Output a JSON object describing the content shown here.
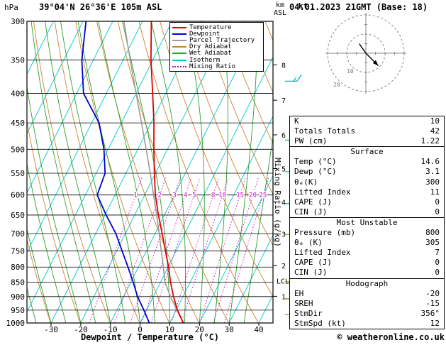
{
  "header": {
    "pressure_unit": "hPa",
    "station": "39°04'N 26°36'E 105m ASL",
    "datetime": "04.01.2023 21GMT (Base: 18)",
    "altitude_unit_top": "km",
    "altitude_unit_bottom": "ASL"
  },
  "axes": {
    "x_title": "Dewpoint / Temperature (°C)",
    "x_ticks": [
      -30,
      -20,
      -10,
      0,
      10,
      20,
      30,
      40
    ],
    "pressure_ticks": [
      300,
      350,
      400,
      450,
      500,
      550,
      600,
      650,
      700,
      750,
      800,
      850,
      900,
      950,
      1000
    ],
    "km_ticks": [
      1,
      2,
      3,
      4,
      5,
      6,
      7,
      8
    ],
    "mixing_ratio_axis_label": "Mixing Ratio (g/kg)",
    "lcl_label": "LCL"
  },
  "colors": {
    "temperature": "#e00000",
    "dewpoint": "#0000d0",
    "parcel": "#9a9a9a",
    "dry_adiabat": "#cc8433",
    "wet_adiabat": "#2da02d",
    "isotherm": "#00c8c8",
    "mixing_ratio": "#c800c8",
    "barb_upper": "#00b4b4",
    "barb_lower": "#6aaa1e",
    "grid": "#000000"
  },
  "legend": {
    "items": [
      {
        "label": "Temperature",
        "color_key": "temperature",
        "style": "solid"
      },
      {
        "label": "Dewpoint",
        "color_key": "dewpoint",
        "style": "solid"
      },
      {
        "label": "Parcel Trajectory",
        "color_key": "parcel",
        "style": "solid"
      },
      {
        "label": "Dry Adiabat",
        "color_key": "dry_adiabat",
        "style": "solid"
      },
      {
        "label": "Wet Adiabat",
        "color_key": "wet_adiabat",
        "style": "solid"
      },
      {
        "label": "Isotherm",
        "color_key": "isotherm",
        "style": "solid"
      },
      {
        "label": "Mixing Ratio",
        "color_key": "mixing_ratio",
        "style": "dotted"
      }
    ]
  },
  "hodograph": {
    "unit_label": "kt",
    "ring_labels": [
      "10",
      "20"
    ]
  },
  "panel": {
    "sections": [
      {
        "header": "",
        "rows": [
          {
            "label": "K",
            "value": "10"
          },
          {
            "label": "Totals Totals",
            "value": "42"
          },
          {
            "label": "PW (cm)",
            "value": "1.22"
          }
        ]
      },
      {
        "header": "Surface",
        "rows": [
          {
            "label": "Temp (°C)",
            "value": "14.6"
          },
          {
            "label": "Dewp (°C)",
            "value": "3.1"
          },
          {
            "label": "θₑ(K)",
            "value": "300"
          },
          {
            "label": "Lifted Index",
            "value": "11"
          },
          {
            "label": "CAPE (J)",
            "value": "0"
          },
          {
            "label": "CIN (J)",
            "value": "0"
          }
        ]
      },
      {
        "header": "Most Unstable",
        "rows": [
          {
            "label": "Pressure (mb)",
            "value": "800"
          },
          {
            "label": "θₑ (K)",
            "value": "305"
          },
          {
            "label": "Lifted Index",
            "value": "7"
          },
          {
            "label": "CAPE (J)",
            "value": "0"
          },
          {
            "label": "CIN (J)",
            "value": "0"
          }
        ]
      },
      {
        "header": "Hodograph",
        "rows": [
          {
            "label": "EH",
            "value": "-20"
          },
          {
            "label": "SREH",
            "value": "-15"
          },
          {
            "label": "StmDir",
            "value": "356°"
          },
          {
            "label": "StmSpd (kt)",
            "value": "12"
          }
        ]
      }
    ]
  },
  "footer": {
    "copyright": "© weatheronline.co.uk"
  },
  "chart_data": {
    "type": "skew-t-log-p",
    "pressure_axis_range_hpa": [
      300,
      1000
    ],
    "temp_axis_range_c": [
      -30,
      40
    ],
    "isotherm_step_c": 10,
    "pressure_levels": [
      1000,
      950,
      900,
      850,
      800,
      750,
      700,
      650,
      600,
      550,
      500,
      450,
      400,
      350,
      300
    ],
    "temperature_c": [
      14.6,
      10.4,
      6.8,
      3.4,
      0.2,
      -3.6,
      -7.6,
      -12.0,
      -16.4,
      -20.4,
      -24.6,
      -29.0,
      -34.4,
      -40.6,
      -47.0
    ],
    "dewpoint_c": [
      3.1,
      -0.9,
      -5.3,
      -9.2,
      -13.5,
      -18.2,
      -23.2,
      -29.6,
      -36.0,
      -37.0,
      -41.4,
      -47.5,
      -57.7,
      -63.9,
      -69.0
    ],
    "parcel_c": [
      14.6,
      10.2,
      5.8,
      1.5,
      -1.6,
      -5.0,
      -8.6,
      -12.6,
      -17.0,
      -21.8,
      -27.2,
      -33.2,
      -40.0,
      -47.6,
      -56.2
    ],
    "lcl_pressure_hpa": 845,
    "mixing_ratio_g_kg": [
      1,
      2,
      3,
      4,
      5,
      8,
      10,
      15,
      20,
      25
    ],
    "km_asl_pressures": {
      "1": 899,
      "2": 795,
      "3": 701,
      "4": 617,
      "5": 540,
      "6": 472,
      "7": 411,
      "8": 357
    },
    "wind_barbs": [
      {
        "pressure": 381,
        "speed_kt": 15,
        "level": "upper"
      },
      {
        "pressure": 482,
        "speed_kt": 20,
        "level": "upper"
      },
      {
        "pressure": 547,
        "speed_kt": 15,
        "level": "upper"
      },
      {
        "pressure": 621,
        "speed_kt": 10,
        "level": "upper"
      },
      {
        "pressure": 702,
        "speed_kt": 15,
        "level": "lower"
      },
      {
        "pressure": 848,
        "speed_kt": 25,
        "level": "lower"
      },
      {
        "pressure": 908,
        "speed_kt": 10,
        "level": "lower"
      },
      {
        "pressure": 967,
        "speed_kt": 15,
        "level": "lower"
      }
    ],
    "hodograph_ring_speeds_kt": [
      10,
      20
    ],
    "hodograph_trace_kt": [
      [
        -3.5,
        -5
      ],
      [
        0,
        0
      ],
      [
        6.5,
        6.5
      ]
    ]
  }
}
